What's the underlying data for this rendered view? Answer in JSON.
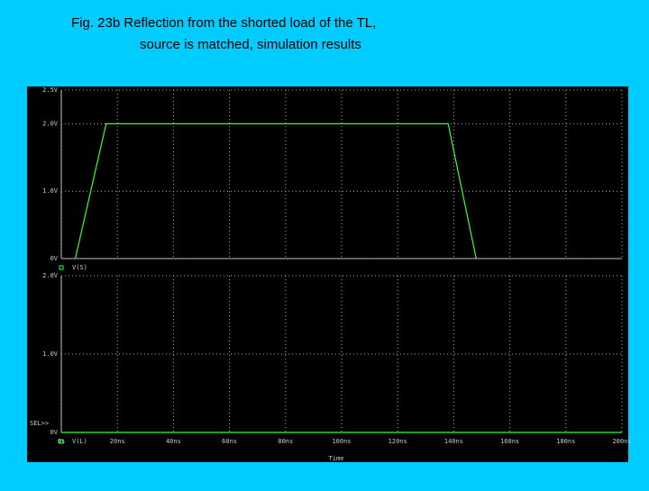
{
  "title_lines": [
    "Fig. 23b  Reflection from the shorted load of the TL,",
    "source is matched, simulation results"
  ],
  "chart_data": [
    {
      "type": "line",
      "xlim": [
        0,
        200
      ],
      "ylim": [
        0,
        2.5
      ],
      "yticks": [
        {
          "value": 0,
          "label": "0V"
        },
        {
          "value": 1,
          "label": "1.0V"
        },
        {
          "value": 2,
          "label": "2.0V"
        },
        {
          "value": 2.5,
          "label": "2.5V"
        }
      ],
      "x": [
        5,
        16,
        138,
        148
      ],
      "grid": true,
      "series": [
        {
          "name": "V(S)",
          "color": "#33ff33",
          "values": [
            0,
            2,
            2,
            0
          ]
        }
      ]
    },
    {
      "type": "line",
      "xlim": [
        0,
        200
      ],
      "ylim": [
        0,
        2
      ],
      "yticks": [
        {
          "value": 0,
          "label": "0V"
        },
        {
          "value": 1,
          "label": "1.0V"
        },
        {
          "value": 2,
          "label": "2.0V"
        }
      ],
      "xticks": [
        {
          "value": 0,
          "label": "0s"
        },
        {
          "value": 20,
          "label": "20ns"
        },
        {
          "value": 40,
          "label": "40ns"
        },
        {
          "value": 60,
          "label": "60ns"
        },
        {
          "value": 80,
          "label": "80ns"
        },
        {
          "value": 100,
          "label": "100ns"
        },
        {
          "value": 120,
          "label": "120ns"
        },
        {
          "value": 140,
          "label": "140ns"
        },
        {
          "value": 160,
          "label": "160ns"
        },
        {
          "value": 180,
          "label": "180ns"
        },
        {
          "value": 200,
          "label": "200ns"
        }
      ],
      "xlabel": "Time",
      "annotation": "SEL>>",
      "x": [
        0,
        200
      ],
      "grid": true,
      "series": [
        {
          "name": "V(L)",
          "color": "#33ff33",
          "values": [
            0,
            0
          ]
        }
      ]
    }
  ]
}
